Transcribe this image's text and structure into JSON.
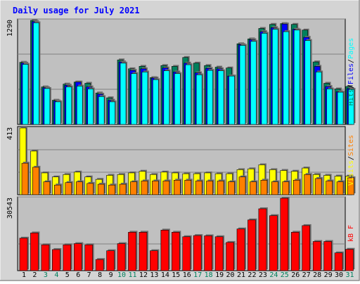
{
  "title": "Daily usage for July 2021",
  "colors": {
    "hits": "#00805c",
    "files": "#0000ff",
    "pages": "#00ffff",
    "visits": "#ffff00",
    "sites": "#ff8000",
    "kbytes": "#ff0000",
    "panel_bg": "#c0c0c0",
    "frame_bg": "#d4d4d4",
    "title": "#0000ff"
  },
  "chart_data": [
    {
      "type": "bar",
      "panel": "hits-files-pages",
      "ymax_label": "1290",
      "legend": [
        {
          "text": "Hits",
          "color": "#00805c"
        },
        {
          "text": "Files",
          "color": "#0000ff"
        },
        {
          "text": "Pages",
          "color": "#00ffff"
        }
      ],
      "categories": [
        "1",
        "2",
        "3",
        "4",
        "5",
        "6",
        "7",
        "8",
        "9",
        "10",
        "11",
        "12",
        "13",
        "14",
        "15",
        "16",
        "17",
        "18",
        "19",
        "20",
        "21",
        "22",
        "23",
        "24",
        "25",
        "26",
        "27",
        "28",
        "29",
        "30",
        "31"
      ],
      "series": [
        {
          "name": "Hits",
          "values": [
            770,
            1290,
            465,
            300,
            500,
            525,
            510,
            390,
            330,
            800,
            690,
            720,
            580,
            730,
            720,
            830,
            760,
            730,
            710,
            700,
            1000,
            1060,
            1190,
            1240,
            1250,
            1240,
            1170,
            775,
            510,
            440,
            470
          ]
        },
        {
          "name": "Files",
          "values": [
            760,
            1275,
            455,
            290,
            485,
            525,
            465,
            375,
            300,
            775,
            670,
            690,
            575,
            700,
            650,
            760,
            640,
            695,
            690,
            600,
            990,
            1050,
            1150,
            1200,
            1245,
            1180,
            1080,
            720,
            470,
            405,
            445
          ]
        },
        {
          "name": "Pages",
          "values": [
            745,
            1260,
            445,
            280,
            465,
            475,
            440,
            345,
            280,
            760,
            630,
            650,
            555,
            665,
            630,
            740,
            615,
            670,
            665,
            600,
            980,
            1030,
            1130,
            1180,
            1150,
            1170,
            1040,
            650,
            440,
            400,
            435
          ]
        }
      ]
    },
    {
      "type": "bar",
      "panel": "visits-sites",
      "ymax_label": "413",
      "legend": [
        {
          "text": "Visits",
          "color": "#ffff00"
        },
        {
          "text": "Sites",
          "color": "#ff8000"
        }
      ],
      "categories": [
        "1",
        "2",
        "3",
        "4",
        "5",
        "6",
        "7",
        "8",
        "9",
        "10",
        "11",
        "12",
        "13",
        "14",
        "15",
        "16",
        "17",
        "18",
        "19",
        "20",
        "21",
        "22",
        "23",
        "24",
        "25",
        "26",
        "27",
        "28",
        "29",
        "30",
        "31"
      ],
      "series": [
        {
          "name": "Visits",
          "values": [
            413,
            270,
            135,
            110,
            125,
            140,
            110,
            95,
            120,
            125,
            135,
            145,
            125,
            140,
            135,
            130,
            130,
            135,
            130,
            130,
            155,
            160,
            185,
            155,
            150,
            145,
            165,
            125,
            120,
            115,
            115
          ]
        },
        {
          "name": "Sites",
          "values": [
            195,
            170,
            80,
            60,
            75,
            80,
            70,
            65,
            60,
            65,
            80,
            85,
            85,
            85,
            90,
            90,
            85,
            85,
            85,
            80,
            110,
            80,
            90,
            80,
            80,
            90,
            125,
            100,
            85,
            80,
            105
          ]
        }
      ]
    },
    {
      "type": "bar",
      "panel": "kbytes",
      "ymax_label": "30543",
      "legend": [
        {
          "text": "kB F",
          "color": "#ff0000"
        }
      ],
      "categories": [
        "1",
        "2",
        "3",
        "4",
        "5",
        "6",
        "7",
        "8",
        "9",
        "10",
        "11",
        "12",
        "13",
        "14",
        "15",
        "16",
        "17",
        "18",
        "19",
        "20",
        "21",
        "22",
        "23",
        "24",
        "25",
        "26",
        "27",
        "28",
        "29",
        "30",
        "31"
      ],
      "series": [
        {
          "name": "kB F",
          "values": [
            13700,
            15900,
            10900,
            8900,
            10900,
            11400,
            10900,
            4700,
            8400,
            11400,
            16200,
            16200,
            8400,
            17100,
            16200,
            14300,
            14800,
            14700,
            14300,
            11900,
            17600,
            21400,
            26100,
            23200,
            30543,
            16200,
            19000,
            12300,
            12300,
            7500,
            9000
          ]
        }
      ]
    }
  ],
  "x_labels": [
    "1",
    "2",
    "3",
    "4",
    "5",
    "6",
    "7",
    "8",
    "9",
    "10",
    "11",
    "12",
    "13",
    "14",
    "15",
    "16",
    "17",
    "18",
    "19",
    "20",
    "21",
    "22",
    "23",
    "24",
    "25",
    "26",
    "27",
    "28",
    "29",
    "30",
    "31"
  ],
  "weekend_days": [
    "3",
    "4",
    "10",
    "11",
    "17",
    "18",
    "24",
    "25",
    "31"
  ]
}
